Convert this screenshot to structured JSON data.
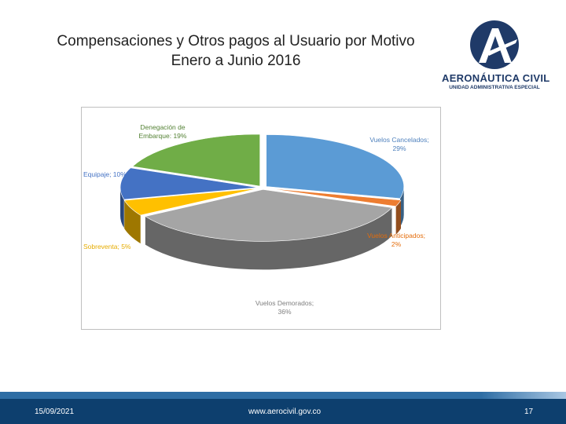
{
  "slide": {
    "title_line1": "Compensaciones y Otros pagos al Usuario por Motivo",
    "title_line2": "Enero a Junio 2016",
    "date": "15/09/2021",
    "website": "www.aerocivil.gov.co",
    "page_number": "17"
  },
  "logo": {
    "name": "AERONÁUTICA CIVIL",
    "subtitle": "UNIDAD ADMINISTRATIVA ESPECIAL",
    "color": "#1f3a68"
  },
  "chart_data": {
    "type": "pie",
    "title": "",
    "style": "3d-exploded",
    "slices": [
      {
        "label": "Vuelos Cancelados",
        "percent": 29,
        "color": "#5b9bd5",
        "label_color": "#4f81bd",
        "label_line1": "Vuelos Cancelados;",
        "label_line2": "29%"
      },
      {
        "label": "Vuelos Anticipados",
        "percent": 2,
        "color": "#ed7d31",
        "label_color": "#e46c0a",
        "label_line1": "Vuelos Anticipados;",
        "label_line2": "2%"
      },
      {
        "label": "Vuelos Demorados",
        "percent": 36,
        "color": "#a5a5a5",
        "label_color": "#7f7f7f",
        "label_line1": "Vuelos Demorados;",
        "label_line2": "36%"
      },
      {
        "label": "Sobreventa",
        "percent": 5,
        "color": "#ffc000",
        "label_color": "#e6ac00",
        "label_line1": "Sobreventa; 5%",
        "label_line2": ""
      },
      {
        "label": "Equipaje",
        "percent": 10,
        "color": "#4472c4",
        "label_color": "#4472c4",
        "label_line1": "Equipaje; 10%",
        "label_line2": ""
      },
      {
        "label": "Denegación de Embarque",
        "percent": 19,
        "color": "#70ad47",
        "label_color": "#548235",
        "label_line1": "Denegación de",
        "label_line2": "Embarque: 19%"
      }
    ]
  }
}
